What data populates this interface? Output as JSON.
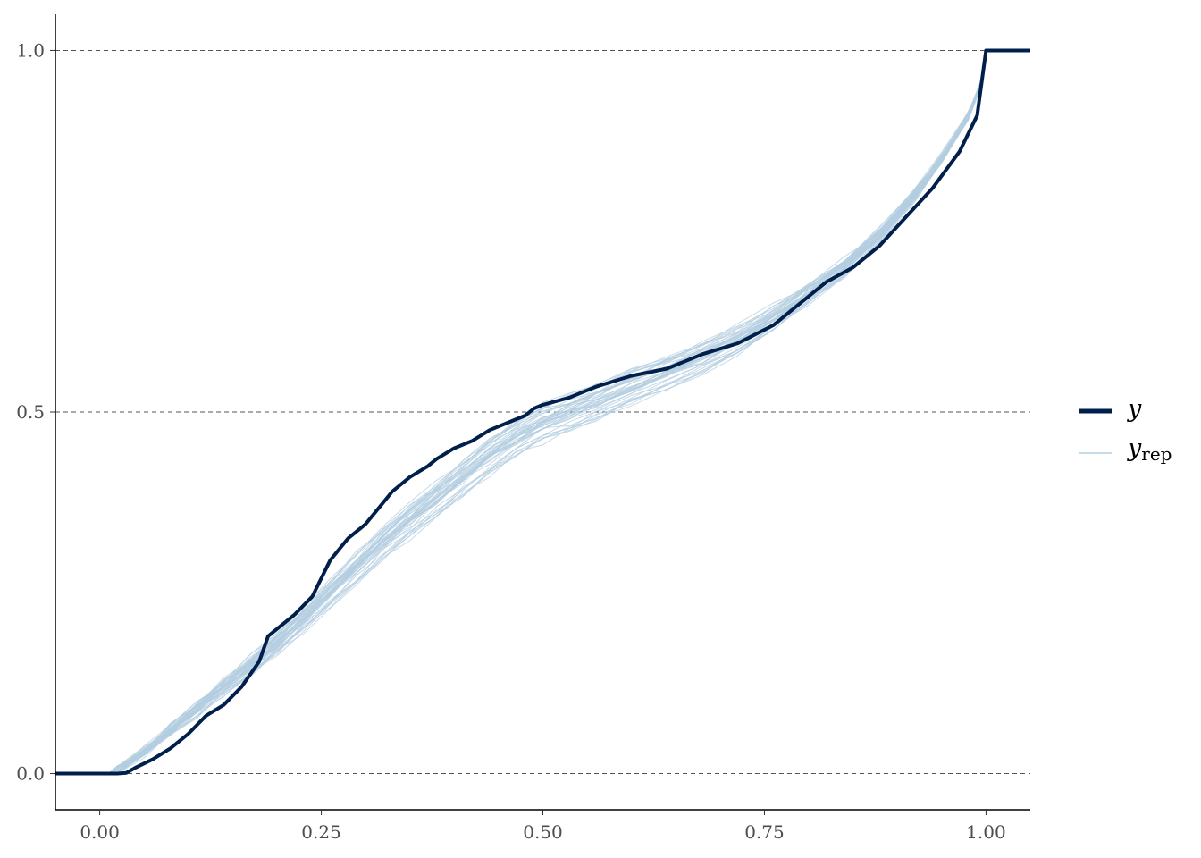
{
  "chart_data": {
    "type": "line",
    "title": "",
    "xlabel": "",
    "ylabel": "",
    "xlim": [
      -0.05,
      1.05
    ],
    "ylim": [
      -0.05,
      1.05
    ],
    "x_ticks": [
      "0.00",
      "0.25",
      "0.50",
      "0.75",
      "1.00"
    ],
    "y_ticks": [
      "0.0",
      "0.5",
      "1.0"
    ],
    "x_tick_values": [
      0,
      0.25,
      0.5,
      0.75,
      1.0
    ],
    "y_tick_values": [
      0,
      0.5,
      1.0
    ],
    "grid": "horizontal dashed lines at y ticks",
    "legend_position": "right",
    "series": [
      {
        "name": "y",
        "color": "#011f4b",
        "x": [
          -0.05,
          0.0,
          0.02,
          0.03,
          0.04,
          0.06,
          0.08,
          0.1,
          0.12,
          0.14,
          0.16,
          0.18,
          0.19,
          0.2,
          0.22,
          0.24,
          0.25,
          0.26,
          0.27,
          0.28,
          0.3,
          0.32,
          0.33,
          0.35,
          0.37,
          0.38,
          0.4,
          0.42,
          0.44,
          0.46,
          0.48,
          0.49,
          0.5,
          0.53,
          0.56,
          0.6,
          0.64,
          0.68,
          0.72,
          0.76,
          0.78,
          0.8,
          0.82,
          0.85,
          0.88,
          0.91,
          0.94,
          0.97,
          0.99,
          1.0,
          1.05
        ],
        "y": [
          0.0,
          0.0,
          0.0,
          0.001,
          0.008,
          0.02,
          0.035,
          0.055,
          0.08,
          0.095,
          0.12,
          0.155,
          0.19,
          0.2,
          0.22,
          0.245,
          0.27,
          0.295,
          0.31,
          0.325,
          0.345,
          0.375,
          0.39,
          0.41,
          0.425,
          0.435,
          0.45,
          0.46,
          0.475,
          0.485,
          0.495,
          0.505,
          0.51,
          0.52,
          0.535,
          0.55,
          0.56,
          0.58,
          0.595,
          0.62,
          0.64,
          0.66,
          0.68,
          0.7,
          0.73,
          0.77,
          0.81,
          0.86,
          0.91,
          1.0,
          1.0
        ]
      },
      {
        "name": "y_rep",
        "color": "#b3cde0",
        "count": 40,
        "x_mean": [
          0.01,
          0.02,
          0.05,
          0.08,
          0.11,
          0.14,
          0.17,
          0.2,
          0.23,
          0.26,
          0.29,
          0.32,
          0.35,
          0.38,
          0.41,
          0.44,
          0.47,
          0.5,
          0.53,
          0.56,
          0.6,
          0.64,
          0.68,
          0.72,
          0.76,
          0.8,
          0.84,
          0.88,
          0.92,
          0.95,
          0.98,
          0.995,
          1.0
        ],
        "y_mean": [
          0.0,
          0.005,
          0.03,
          0.06,
          0.09,
          0.12,
          0.15,
          0.18,
          0.215,
          0.25,
          0.285,
          0.32,
          0.35,
          0.38,
          0.41,
          0.44,
          0.465,
          0.485,
          0.5,
          0.515,
          0.535,
          0.555,
          0.575,
          0.6,
          0.63,
          0.665,
          0.7,
          0.745,
          0.8,
          0.85,
          0.91,
          0.955,
          1.0
        ]
      }
    ]
  },
  "legend": {
    "items": [
      {
        "label": "y",
        "color": "#011f4b"
      },
      {
        "label": "y",
        "subscript": "rep",
        "color": "#b3cde0"
      }
    ]
  }
}
